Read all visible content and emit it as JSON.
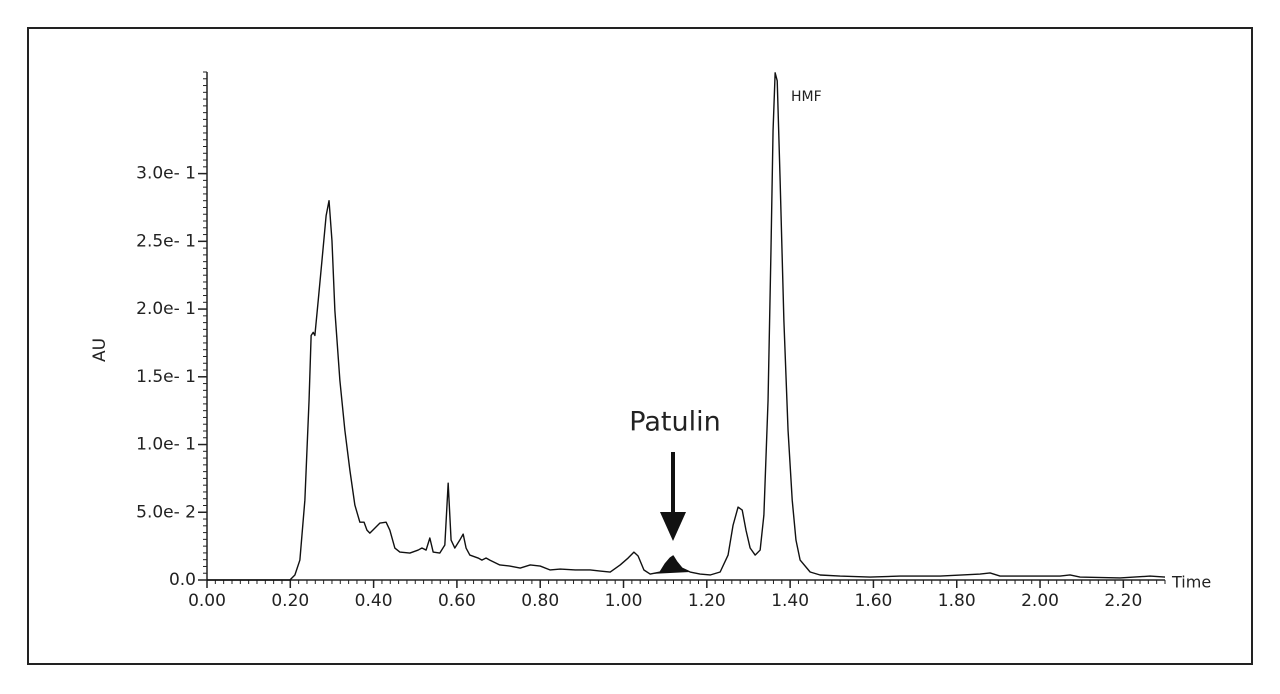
{
  "chart_data": {
    "type": "line",
    "y_label": "AU",
    "x_label": "Time",
    "annotations": [
      "Patulin",
      "HMF"
    ],
    "color": "#111111",
    "xlim": [
      0,
      2.3
    ],
    "ylim": [
      0,
      0.375
    ],
    "xticks": [
      {
        "value": 0,
        "label": "0.00"
      },
      {
        "value": 0.2,
        "label": "0.20"
      },
      {
        "value": 0.4,
        "label": "0.40"
      },
      {
        "value": 0.6,
        "label": "0.60"
      },
      {
        "value": 0.8,
        "label": "0.80"
      },
      {
        "value": 1.0,
        "label": "1.00"
      },
      {
        "value": 1.2,
        "label": "1.20"
      },
      {
        "value": 1.4,
        "label": "1.40"
      },
      {
        "value": 1.6,
        "label": "1.60"
      },
      {
        "value": 1.8,
        "label": "1.80"
      },
      {
        "value": 2.0,
        "label": "2.00"
      },
      {
        "value": 2.2,
        "label": "2.20"
      }
    ],
    "yticks": [
      {
        "value": 0,
        "label": "0.0"
      },
      {
        "value": 0.05,
        "label": "5.0e- 2"
      },
      {
        "value": 0.1,
        "label": "1.0e- 1"
      },
      {
        "value": 0.15,
        "label": "1.5e- 1"
      },
      {
        "value": 0.2,
        "label": "2.0e- 1"
      },
      {
        "value": 0.25,
        "label": "2.5e- 1"
      },
      {
        "value": 0.3,
        "label": "3.0e- 1"
      }
    ],
    "x": [
      0,
      0.199,
      0.211,
      0.223,
      0.235,
      0.245,
      0.25,
      0.255,
      0.259,
      0.267,
      0.276,
      0.286,
      0.293,
      0.3,
      0.307,
      0.319,
      0.331,
      0.343,
      0.355,
      0.367,
      0.377,
      0.384,
      0.391,
      0.403,
      0.415,
      0.43,
      0.439,
      0.451,
      0.463,
      0.487,
      0.507,
      0.516,
      0.526,
      0.535,
      0.543,
      0.559,
      0.571,
      0.579,
      0.586,
      0.595,
      0.607,
      0.615,
      0.622,
      0.631,
      0.651,
      0.66,
      0.67,
      0.679,
      0.703,
      0.727,
      0.752,
      0.776,
      0.8,
      0.824,
      0.848,
      0.884,
      0.92,
      0.944,
      0.968,
      0.992,
      1.011,
      1.025,
      1.035,
      1.049,
      1.064,
      1.088,
      1.1,
      1.112,
      1.119,
      1.128,
      1.14,
      1.16,
      1.184,
      1.208,
      1.232,
      1.251,
      1.263,
      1.275,
      1.285,
      1.294,
      1.304,
      1.316,
      1.328,
      1.337,
      1.347,
      1.354,
      1.359,
      1.364,
      1.369,
      1.376,
      1.385,
      1.395,
      1.405,
      1.414,
      1.424,
      1.448,
      1.472,
      1.52,
      1.592,
      1.664,
      1.76,
      1.856,
      1.88,
      1.904,
      2.048,
      2.072,
      2.096,
      2.192,
      2.264,
      2.3
    ],
    "values": [
      0,
      0,
      0.0037,
      0.0147,
      0.059,
      0.1326,
      0.1805,
      0.1828,
      0.1805,
      0.2063,
      0.2358,
      0.269,
      0.28,
      0.2506,
      0.199,
      0.1474,
      0.1105,
      0.0811,
      0.0553,
      0.0427,
      0.0427,
      0.0368,
      0.0346,
      0.0383,
      0.042,
      0.0427,
      0.0368,
      0.0236,
      0.0206,
      0.0199,
      0.0221,
      0.0236,
      0.0221,
      0.031,
      0.0206,
      0.0199,
      0.0258,
      0.0715,
      0.0295,
      0.0236,
      0.0295,
      0.0339,
      0.0236,
      0.0184,
      0.0162,
      0.0147,
      0.0162,
      0.0147,
      0.0111,
      0.0103,
      0.0088,
      0.0111,
      0.0103,
      0.0074,
      0.0081,
      0.0074,
      0.0074,
      0.0066,
      0.0059,
      0.0111,
      0.0162,
      0.0206,
      0.0177,
      0.0074,
      0.0044,
      0.0059,
      0.0118,
      0.0162,
      0.0177,
      0.0133,
      0.0088,
      0.0059,
      0.0044,
      0.0037,
      0.0059,
      0.0184,
      0.0405,
      0.0538,
      0.0516,
      0.0368,
      0.0236,
      0.0184,
      0.0221,
      0.0479,
      0.1326,
      0.2432,
      0.3316,
      0.3744,
      0.3685,
      0.2948,
      0.1916,
      0.1105,
      0.059,
      0.0295,
      0.0147,
      0.0059,
      0.0037,
      0.0029,
      0.0022,
      0.0029,
      0.0029,
      0.0044,
      0.0052,
      0.0029,
      0.0029,
      0.0037,
      0.0022,
      0.0015,
      0.0029,
      0.0022
    ]
  }
}
